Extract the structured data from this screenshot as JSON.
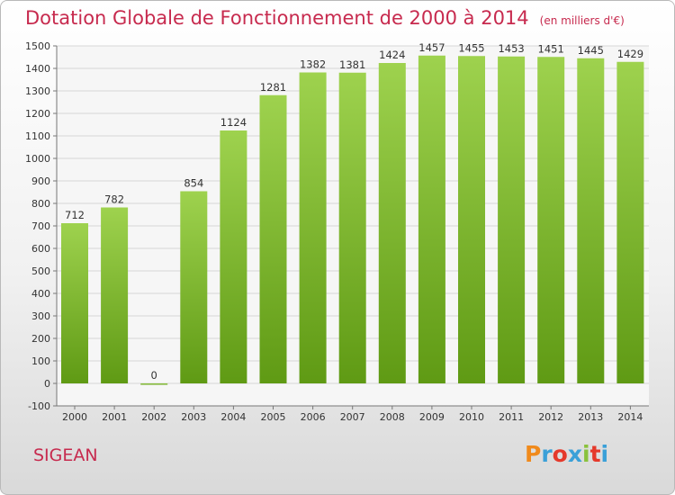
{
  "title": "Dotation Globale de Fonctionnement de 2000 à 2014",
  "unit_note": "(en milliers d'€)",
  "commune": "SIGEAN",
  "logo": {
    "letters": [
      "P",
      "r",
      "o",
      "x",
      "i",
      "t",
      "i"
    ],
    "colors": [
      "#f08a1c",
      "#3aa0d8",
      "#e5392b",
      "#3aa0d8",
      "#8ac23c",
      "#e5392b",
      "#3aa0d8"
    ]
  },
  "bar_color": "#8cc43e",
  "chart_data": {
    "type": "bar",
    "title": "Dotation Globale de Fonctionnement de 2000 à 2014",
    "categories": [
      "2000",
      "2001",
      "2002",
      "2003",
      "2004",
      "2005",
      "2006",
      "2007",
      "2008",
      "2009",
      "2010",
      "2011",
      "2012",
      "2013",
      "2014"
    ],
    "values": [
      712,
      782,
      0,
      854,
      1124,
      1281,
      1382,
      1381,
      1424,
      1457,
      1455,
      1453,
      1451,
      1445,
      1429
    ],
    "data_labels": [
      "712",
      "782",
      "0",
      "854",
      "1124",
      "1281",
      "1382",
      "1381",
      "1424",
      "1457",
      "1455",
      "1453",
      "1451",
      "1445",
      "1429"
    ],
    "y_ticks": [
      -100,
      0,
      100,
      200,
      300,
      400,
      500,
      600,
      700,
      800,
      900,
      1000,
      1100,
      1200,
      1300,
      1400,
      1500
    ],
    "ylim": [
      -100,
      1500
    ],
    "grid": true,
    "legend": "none"
  }
}
